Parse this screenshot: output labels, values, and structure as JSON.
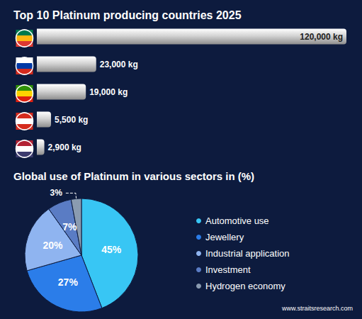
{
  "chart_data": [
    {
      "type": "bar",
      "title": "Top 10 Platinum producing countries 2025",
      "orientation": "horizontal",
      "categories": [
        null,
        null,
        null,
        null,
        null
      ],
      "values": [
        120000,
        23000,
        19000,
        5500,
        2900
      ],
      "value_labels": [
        "120,000 kg",
        "23,000 kg",
        "19,000 kg",
        "5,500 kg",
        "2,900 kg"
      ],
      "color": "#d4d4d4",
      "xlim": [
        0,
        120000
      ],
      "xticks": [
        0,
        120000
      ],
      "tick_labels": false,
      "grid": false,
      "data_labels": true
    },
    {
      "type": "pie",
      "title": "Global use of Platinum in various sectors in (%)",
      "categories": [
        "Automotive use",
        "Jewellery",
        "Industrial application",
        "Investment",
        "Hydrogen economy"
      ],
      "values": [
        45,
        27,
        20,
        7,
        3
      ],
      "value_labels": [
        "45%",
        "27%",
        "20%",
        "7%",
        "3%"
      ],
      "colors": [
        "#38c6f4",
        "#2b7de9",
        "#8fb4f0",
        "#5a7cc4",
        "#8a9bb0"
      ],
      "legend": "right",
      "data_labels": true,
      "annotations": [
        "www.straitsresearch.com"
      ]
    }
  ]
}
